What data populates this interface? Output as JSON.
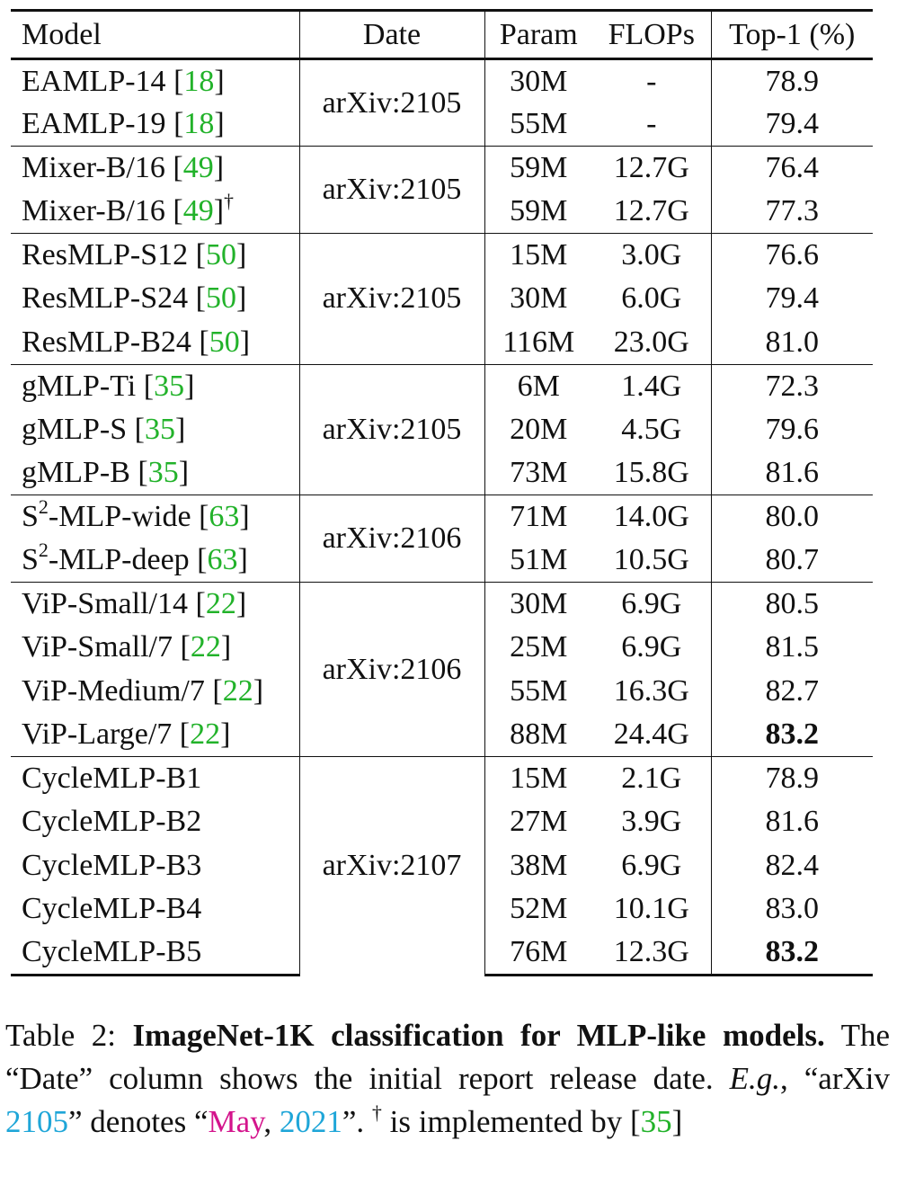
{
  "table": {
    "headers": {
      "model": "Model",
      "date": "Date",
      "param": "Param",
      "flops": "FLOPs",
      "top1": "Top-1 (%)"
    },
    "groups": [
      {
        "date": "arXiv:2105",
        "rows": [
          {
            "model": "EAMLP-14 ",
            "cite": "18",
            "mark": "",
            "param": "30M",
            "flops": "-",
            "top1": "78.9",
            "bold": false
          },
          {
            "model": "EAMLP-19 ",
            "cite": "18",
            "mark": "",
            "param": "55M",
            "flops": "-",
            "top1": "79.4",
            "bold": false
          }
        ]
      },
      {
        "date": "arXiv:2105",
        "rows": [
          {
            "model": "Mixer-B/16 ",
            "cite": "49",
            "mark": "",
            "param": "59M",
            "flops": "12.7G",
            "top1": "76.4",
            "bold": false
          },
          {
            "model": "Mixer-B/16 ",
            "cite": "49",
            "mark": "†",
            "param": "59M",
            "flops": "12.7G",
            "top1": "77.3",
            "bold": false
          }
        ]
      },
      {
        "date": "arXiv:2105",
        "rows": [
          {
            "model": "ResMLP-S12 ",
            "cite": "50",
            "mark": "",
            "param": "15M",
            "flops": "3.0G",
            "top1": "76.6",
            "bold": false
          },
          {
            "model": "ResMLP-S24 ",
            "cite": "50",
            "mark": "",
            "param": "30M",
            "flops": "6.0G",
            "top1": "79.4",
            "bold": false
          },
          {
            "model": "ResMLP-B24 ",
            "cite": "50",
            "mark": "",
            "param": "116M",
            "flops": "23.0G",
            "top1": "81.0",
            "bold": false
          }
        ]
      },
      {
        "date": "arXiv:2105",
        "rows": [
          {
            "model": "gMLP-Ti ",
            "cite": "35",
            "mark": "",
            "param": "6M",
            "flops": "1.4G",
            "top1": "72.3",
            "bold": false
          },
          {
            "model": "gMLP-S ",
            "cite": "35",
            "mark": "",
            "param": "20M",
            "flops": "4.5G",
            "top1": "79.6",
            "bold": false
          },
          {
            "model": "gMLP-B ",
            "cite": "35",
            "mark": "",
            "param": "73M",
            "flops": "15.8G",
            "top1": "81.6",
            "bold": false
          }
        ]
      },
      {
        "date": "arXiv:2106",
        "rows": [
          {
            "model": "S",
            "sup": "2",
            "model_rest": "-MLP-wide ",
            "cite": "63",
            "mark": "",
            "param": "71M",
            "flops": "14.0G",
            "top1": "80.0",
            "bold": false
          },
          {
            "model": "S",
            "sup": "2",
            "model_rest": "-MLP-deep ",
            "cite": "63",
            "mark": "",
            "param": "51M",
            "flops": "10.5G",
            "top1": "80.7",
            "bold": false
          }
        ]
      },
      {
        "date": "arXiv:2106",
        "rows": [
          {
            "model": "ViP-Small/14 ",
            "cite": "22",
            "mark": "",
            "param": "30M",
            "flops": "6.9G",
            "top1": "80.5",
            "bold": false
          },
          {
            "model": "ViP-Small/7 ",
            "cite": "22",
            "mark": "",
            "param": "25M",
            "flops": "6.9G",
            "top1": "81.5",
            "bold": false
          },
          {
            "model": "ViP-Medium/7 ",
            "cite": "22",
            "mark": "",
            "param": "55M",
            "flops": "16.3G",
            "top1": "82.7",
            "bold": false
          },
          {
            "model": "ViP-Large/7 ",
            "cite": "22",
            "mark": "",
            "param": "88M",
            "flops": "24.4G",
            "top1": "83.2",
            "bold": true
          }
        ]
      },
      {
        "date": "arXiv:2107",
        "rows": [
          {
            "model": "CycleMLP-B1",
            "cite": "",
            "mark": "",
            "param": "15M",
            "flops": "2.1G",
            "top1": "78.9",
            "bold": false
          },
          {
            "model": "CycleMLP-B2",
            "cite": "",
            "mark": "",
            "param": "27M",
            "flops": "3.9G",
            "top1": "81.6",
            "bold": false
          },
          {
            "model": "CycleMLP-B3",
            "cite": "",
            "mark": "",
            "param": "38M",
            "flops": "6.9G",
            "top1": "82.4",
            "bold": false
          },
          {
            "model": "CycleMLP-B4",
            "cite": "",
            "mark": "",
            "param": "52M",
            "flops": "10.1G",
            "top1": "83.0",
            "bold": false
          },
          {
            "model": "CycleMLP-B5",
            "cite": "",
            "mark": "",
            "param": "76M",
            "flops": "12.3G",
            "top1": "83.2",
            "bold": true
          }
        ]
      }
    ]
  },
  "caption": {
    "label": "Table 2: ",
    "bold_title": "ImageNet-1K classification for MLP-like models.",
    "sentence1": " The “Date” column shows the initial report release date. ",
    "eg": "E.g.",
    "eg_text1": ", “arXiv ",
    "eg_code": "2105",
    "eg_text2": "” denotes “",
    "eg_month": "May",
    "eg_comma": ", ",
    "eg_year": "2021",
    "eg_text3": "”. ",
    "dagger": "†",
    "dagger_text": " is implemented by [",
    "dagger_cite": "35",
    "dagger_close": "]"
  },
  "colors": {
    "citation": "#22b22a",
    "month": "#d4148c",
    "year": "#1fa6d8"
  }
}
